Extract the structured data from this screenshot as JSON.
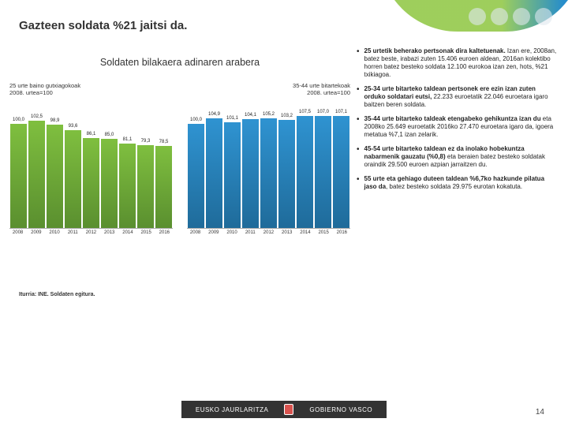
{
  "title": "Gazteen soldata %21 jaitsi da.",
  "chart_title": "Soldaten bilakaera adinaren arabera",
  "chart1": {
    "subtitle": "25 urte baino gutxiagokoak\n2008. urtea=100",
    "categories": [
      "2008",
      "2009",
      "2010",
      "2011",
      "2012",
      "2013",
      "2014",
      "2015",
      "2016"
    ],
    "values": [
      100.0,
      102.5,
      98.9,
      93.6,
      86.1,
      85.0,
      81.1,
      79.3,
      78.5
    ],
    "ymax": 120,
    "bar_color_top": "#7fbf3f",
    "bar_color_bottom": "#5a8f2f",
    "label_fontsize": 6
  },
  "chart2": {
    "subtitle": "35-44 urte bitartekoak\n2008. urtea=100",
    "categories": [
      "2008",
      "2009",
      "2010",
      "2011",
      "2012",
      "2013",
      "2014",
      "2015",
      "2016"
    ],
    "values": [
      100.0,
      104.9,
      101.1,
      104.1,
      105.2,
      103.2,
      107.5,
      107.0,
      107.1
    ],
    "ymax": 120,
    "bar_color_top": "#2f93d1",
    "bar_color_bottom": "#1f6b9a",
    "label_fontsize": 6
  },
  "bullets": [
    {
      "bold": "25 urtetik beherako pertsonak dira kaltetuenak.",
      "rest": " Izan ere, 2008an, batez beste, irabazi zuten 15.406 euroen aldean, 2016an kolektibo horren batez besteko soldata 12.100 eurokoa izan zen, hots, %21 txikiagoa."
    },
    {
      "bold": "25-34 urte bitarteko taldean pertsonek ere ezin izan zuten orduko soldatari eutsi,",
      "rest": " 22.233 euroetatik 22.046 euroetara igaro baitzen beren soldata."
    },
    {
      "bold": "35-44 urte bitarteko taldeak etengabeko gehikuntza izan du",
      "rest": " eta 2008ko 25.649 euroetatik 2016ko 27.470 euroetara igaro da, igoera metatua %7,1 izan zelarik."
    },
    {
      "bold": "45-54 urte bitarteko taldean ez da inolako hobekuntza nabarmenik gauzatu (%0,8)",
      "rest": " eta beraien batez besteko soldatak oraindik 29.500 euroen azpian jarraitzen du."
    },
    {
      "bold": "55 urte eta gehiago duteen taldean %6,7ko hazkunde pilatua jaso da",
      "rest": ", batez besteko soldata 29.975 eurotan kokatuta."
    }
  ],
  "source": "Iturria: INE. Soldaten egitura.",
  "gov_left": "EUSKO JAURLARITZA",
  "gov_right": "GOBIERNO VASCO",
  "page": "14"
}
